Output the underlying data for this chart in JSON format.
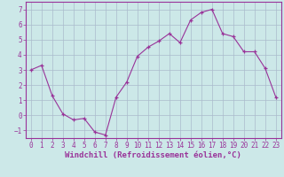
{
  "x": [
    0,
    1,
    2,
    3,
    4,
    5,
    6,
    7,
    8,
    9,
    10,
    11,
    12,
    13,
    14,
    15,
    16,
    17,
    18,
    19,
    20,
    21,
    22,
    23
  ],
  "y": [
    3.0,
    3.3,
    1.3,
    0.1,
    -0.3,
    -0.2,
    -1.1,
    -1.3,
    1.2,
    2.2,
    3.9,
    4.5,
    4.9,
    5.4,
    4.8,
    6.3,
    6.8,
    7.0,
    5.4,
    5.2,
    4.2,
    4.2,
    3.1,
    1.2
  ],
  "line_color": "#993399",
  "marker": "+",
  "marker_size": 3,
  "bg_color": "#cce8e8",
  "plot_bg_color": "#cce8e8",
  "grid_color": "#aabbcc",
  "xlabel": "Windchill (Refroidissement éolien,°C)",
  "xlabel_fontsize": 6.5,
  "tick_fontsize": 5.5,
  "xlim": [
    -0.5,
    23.5
  ],
  "ylim": [
    -1.5,
    7.5
  ],
  "yticks": [
    -1,
    0,
    1,
    2,
    3,
    4,
    5,
    6,
    7
  ],
  "xticks": [
    0,
    1,
    2,
    3,
    4,
    5,
    6,
    7,
    8,
    9,
    10,
    11,
    12,
    13,
    14,
    15,
    16,
    17,
    18,
    19,
    20,
    21,
    22,
    23
  ]
}
